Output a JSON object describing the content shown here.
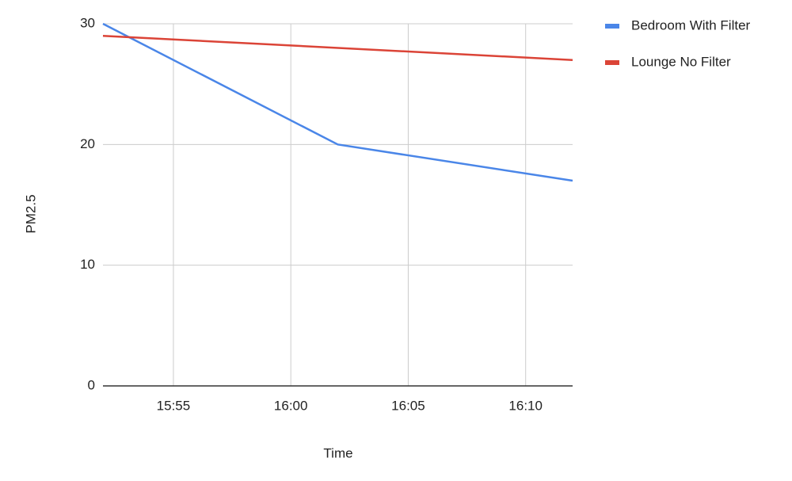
{
  "chart_data": {
    "type": "line",
    "x_label": "Time",
    "y_label": "PM2.5",
    "series": [
      {
        "name": "Bedroom With Filter",
        "color": "#4a86e8",
        "x": [
          "15:52",
          "16:02",
          "16:12"
        ],
        "values": [
          30,
          20,
          17
        ]
      },
      {
        "name": "Lounge No Filter",
        "color": "#db4437",
        "x": [
          "15:52",
          "16:12"
        ],
        "values": [
          29,
          27
        ]
      }
    ],
    "xlim": [
      "15:52",
      "16:12"
    ],
    "xticks": [
      "15:55",
      "16:00",
      "16:05",
      "16:10"
    ],
    "ylim": [
      0,
      30
    ],
    "yticks": [
      0,
      10,
      20,
      30
    ],
    "grid": true,
    "legend": "right"
  }
}
